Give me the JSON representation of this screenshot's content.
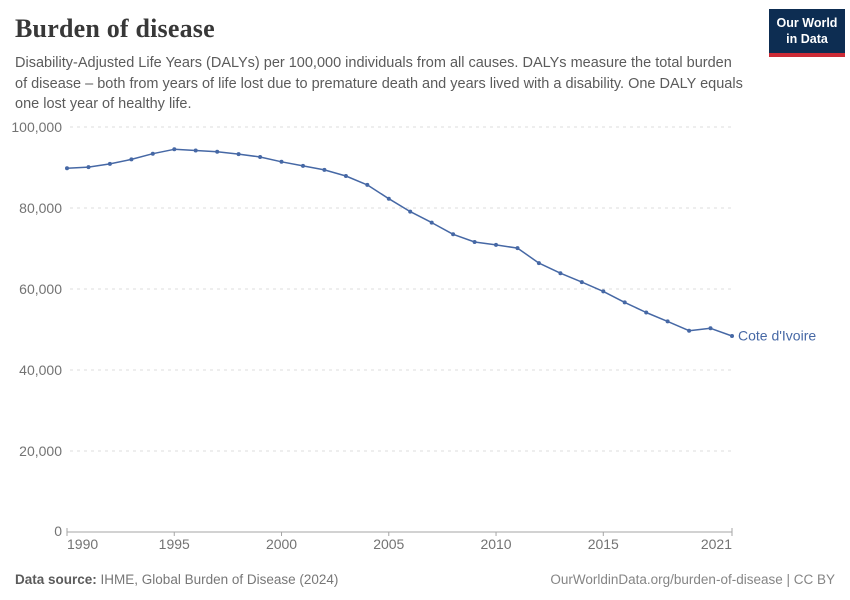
{
  "header": {
    "title": "Burden of disease",
    "subtitle": "Disability-Adjusted Life Years (DALYs) per 100,000 individuals from all causes. DALYs measure the total burden of disease – both from years of life lost due to premature death and years lived with a disability. One DALY equals one lost year of healthy life."
  },
  "logo": {
    "line1": "Our World",
    "line2": "in Data",
    "bg_color": "#0d2d52",
    "accent_color": "#cc2b36"
  },
  "chart_data": {
    "type": "line",
    "title": "Burden of disease",
    "xlabel": "",
    "ylabel": "DALYs per 100,000 individuals",
    "xlim": [
      1990,
      2021
    ],
    "ylim": [
      0,
      100000
    ],
    "grid": "horizontal-dashed",
    "legend_position": "end-of-line-label",
    "series": [
      {
        "name": "Cote d'Ivoire",
        "color": "#4668a5",
        "x": [
          1990,
          1991,
          1992,
          1993,
          1994,
          1995,
          1996,
          1997,
          1998,
          1999,
          2000,
          2001,
          2002,
          2003,
          2004,
          2005,
          2006,
          2007,
          2008,
          2009,
          2010,
          2011,
          2012,
          2013,
          2014,
          2015,
          2016,
          2017,
          2018,
          2019,
          2020,
          2021
        ],
        "values": [
          89800,
          90100,
          90900,
          92000,
          93400,
          94500,
          94200,
          93900,
          93300,
          92600,
          91400,
          90400,
          89400,
          87900,
          85700,
          82300,
          79100,
          76400,
          73500,
          71600,
          70900,
          70100,
          66400,
          63900,
          61700,
          59400,
          56700,
          54200,
          52000,
          49700,
          50300,
          48400
        ]
      }
    ],
    "y_ticks": [
      {
        "value": 0,
        "label": "0"
      },
      {
        "value": 20000,
        "label": "20,000"
      },
      {
        "value": 40000,
        "label": "40,000"
      },
      {
        "value": 60000,
        "label": "60,000"
      },
      {
        "value": 80000,
        "label": "80,000"
      },
      {
        "value": 100000,
        "label": "100,000"
      }
    ],
    "x_ticks": [
      {
        "value": 1990,
        "label": "1990"
      },
      {
        "value": 1995,
        "label": "1995"
      },
      {
        "value": 2000,
        "label": "2000"
      },
      {
        "value": 2005,
        "label": "2005"
      },
      {
        "value": 2010,
        "label": "2010"
      },
      {
        "value": 2015,
        "label": "2015"
      },
      {
        "value": 2021,
        "label": "2021"
      }
    ],
    "colors": {
      "gridline": "#dcdcdc",
      "axis": "#a5a5a5",
      "tick_text": "#737373"
    }
  },
  "footer": {
    "datasource_label": "Data source:",
    "datasource_value": "IHME, Global Burden of Disease (2024)",
    "link": "OurWorldinData.org/burden-of-disease | CC BY"
  }
}
